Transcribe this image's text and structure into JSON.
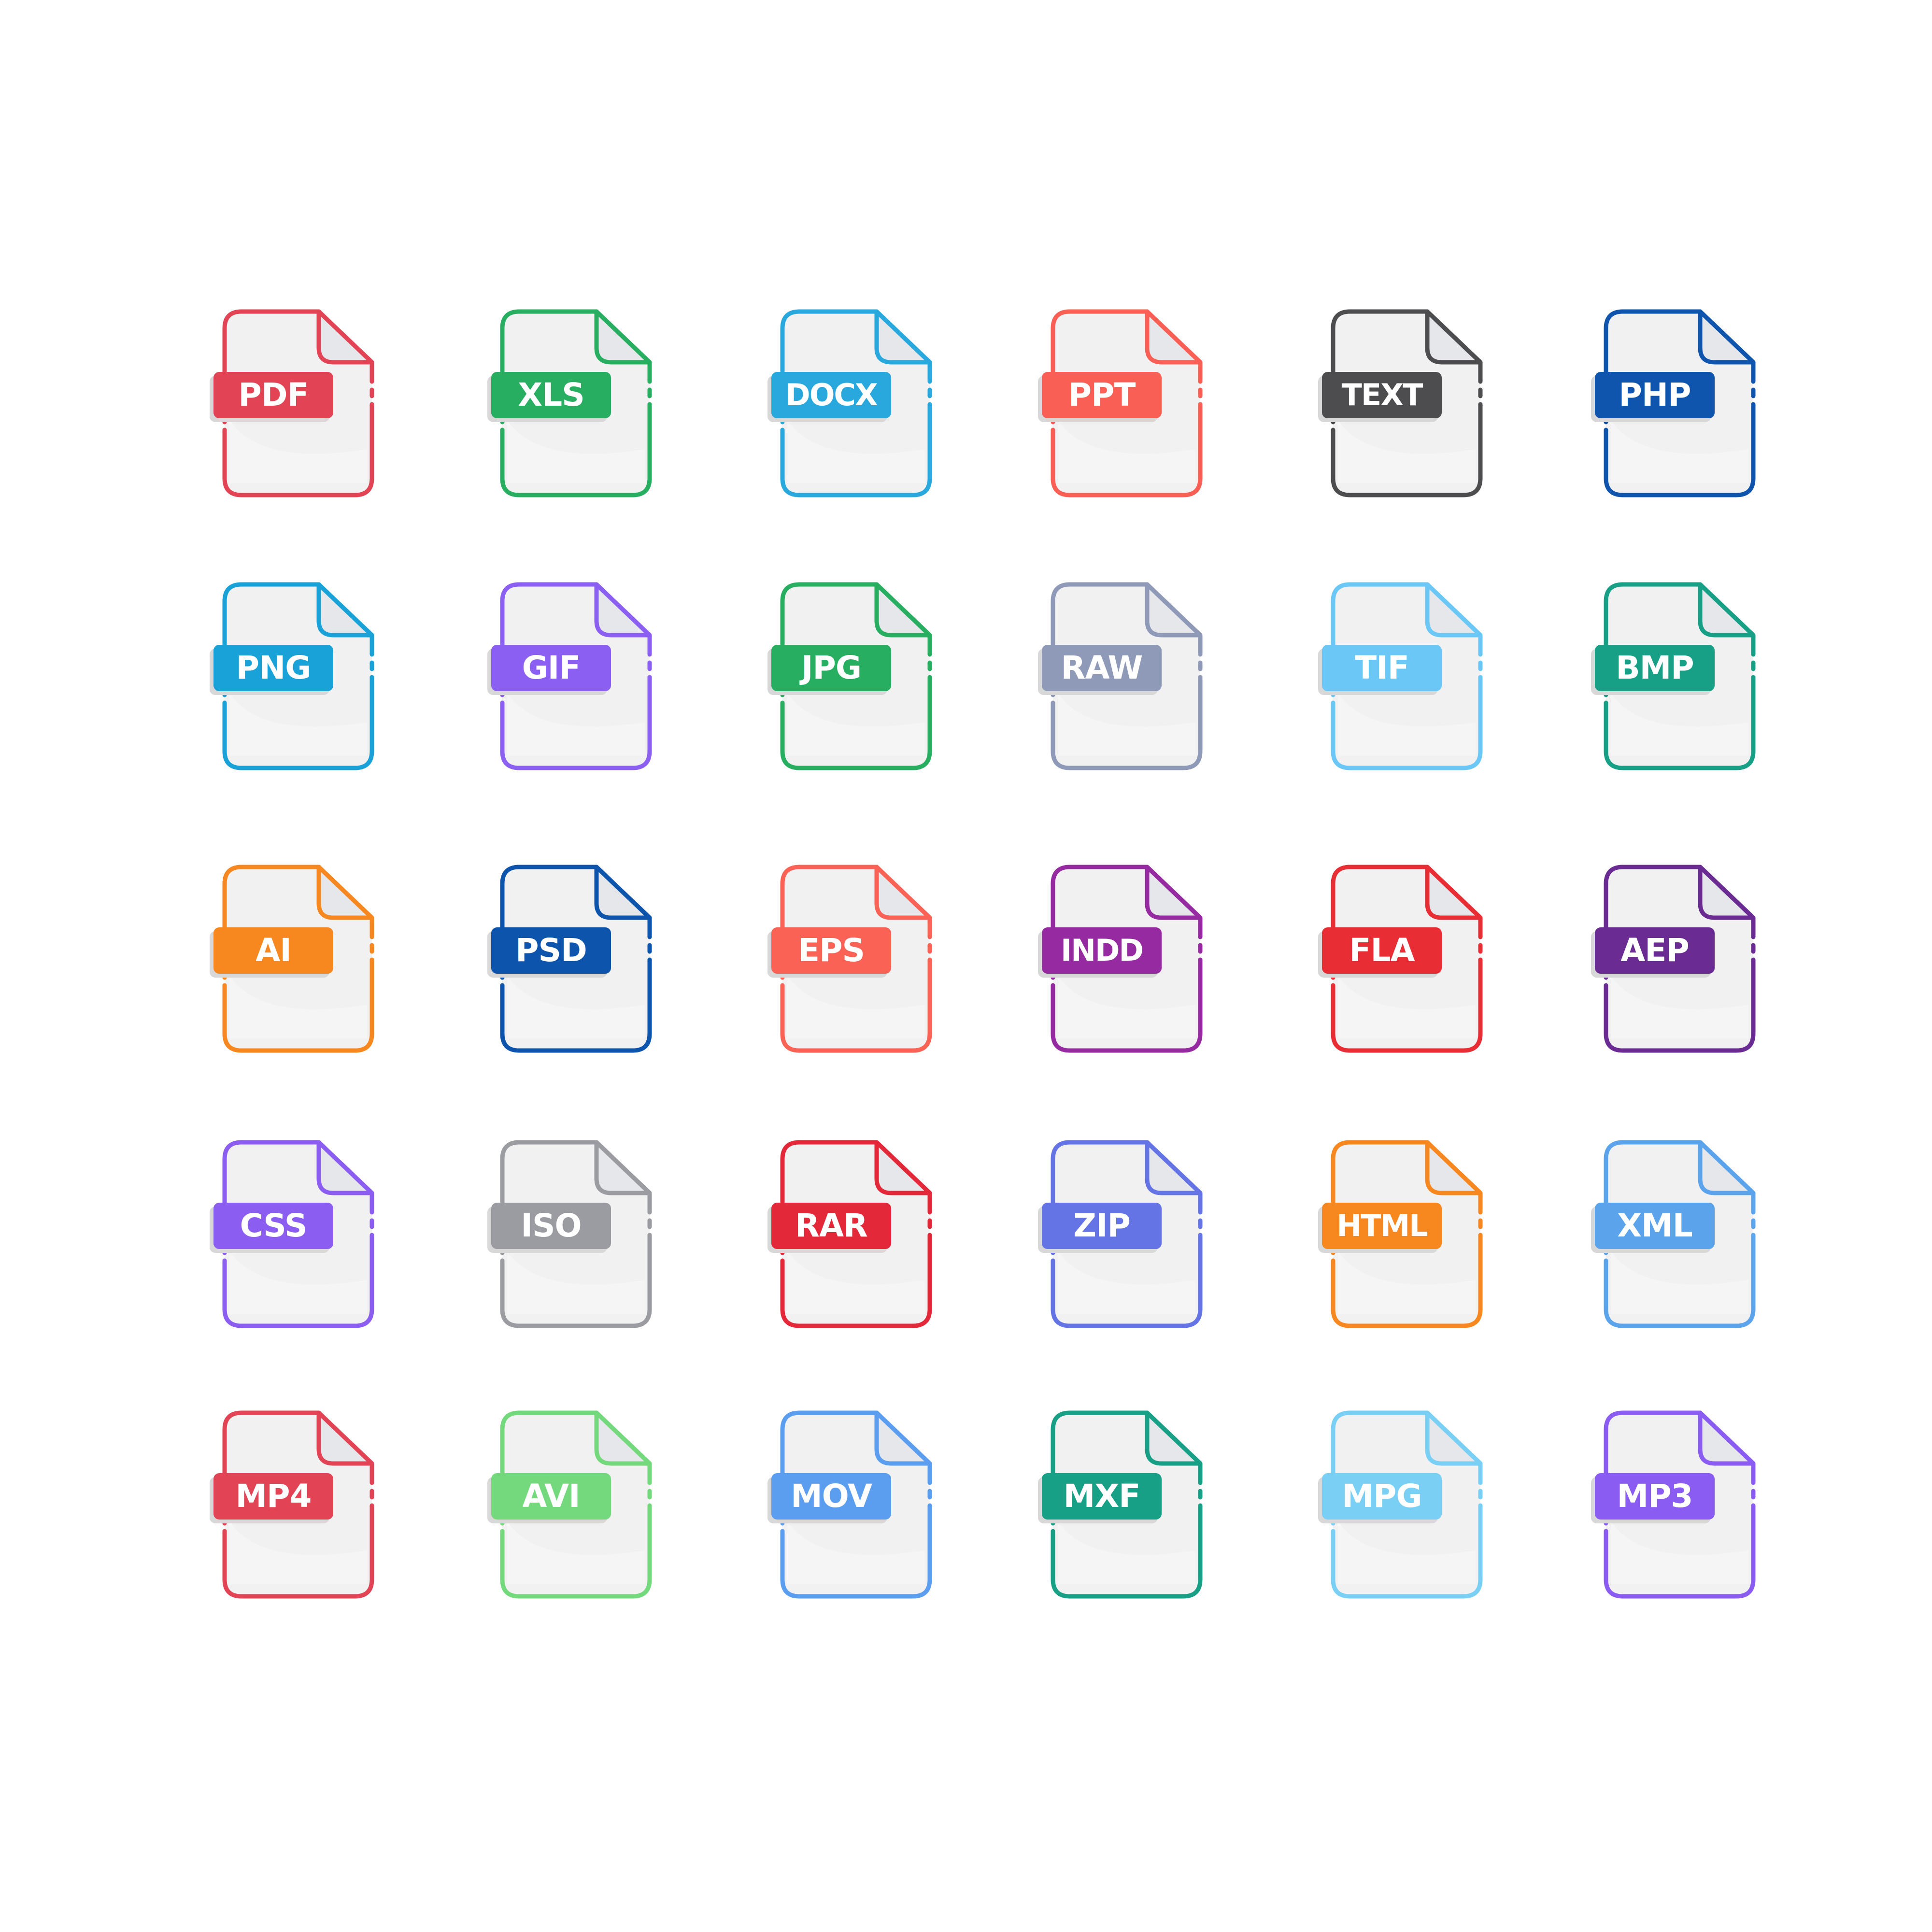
{
  "colors": {
    "page_background": "#ffffff",
    "page_fill": "#f1f1f1",
    "fold_fill": "#e6e7ea",
    "label_shadow": "#d8d8d8",
    "label_text": "#ffffff"
  },
  "icons": [
    {
      "label": "PDF",
      "color": "#e24456",
      "icon": "file-icon"
    },
    {
      "label": "XLS",
      "color": "#27ae60",
      "icon": "file-icon"
    },
    {
      "label": "DOCX",
      "color": "#29a8de",
      "icon": "file-icon"
    },
    {
      "label": "PPT",
      "color": "#fa5f55",
      "icon": "file-icon"
    },
    {
      "label": "TEXT",
      "color": "#4d4d4f",
      "icon": "file-icon"
    },
    {
      "label": "PHP",
      "color": "#0f55ad",
      "icon": "file-icon"
    },
    {
      "label": "PNG",
      "color": "#19a2d8",
      "icon": "file-icon"
    },
    {
      "label": "GIF",
      "color": "#8b5ff1",
      "icon": "file-icon"
    },
    {
      "label": "JPG",
      "color": "#27ae60",
      "icon": "file-icon"
    },
    {
      "label": "RAW",
      "color": "#8e9ab7",
      "icon": "file-icon"
    },
    {
      "label": "TIF",
      "color": "#6bc8f6",
      "icon": "file-icon"
    },
    {
      "label": "BMP",
      "color": "#17a086",
      "icon": "file-icon"
    },
    {
      "label": "AI",
      "color": "#f7871f",
      "icon": "file-icon"
    },
    {
      "label": "PSD",
      "color": "#0d54ad",
      "icon": "file-icon"
    },
    {
      "label": "EPS",
      "color": "#fa6256",
      "icon": "file-icon"
    },
    {
      "label": "INDD",
      "color": "#962aa1",
      "icon": "file-icon"
    },
    {
      "label": "FLA",
      "color": "#e82d35",
      "icon": "file-icon"
    },
    {
      "label": "AEP",
      "color": "#6a2c93",
      "icon": "file-icon"
    },
    {
      "label": "CSS",
      "color": "#8b5df1",
      "icon": "file-icon"
    },
    {
      "label": "ISO",
      "color": "#9b9ca2",
      "icon": "file-icon"
    },
    {
      "label": "RAR",
      "color": "#e3283a",
      "icon": "file-icon"
    },
    {
      "label": "ZIP",
      "color": "#6474e5",
      "icon": "file-icon"
    },
    {
      "label": "HTML",
      "color": "#f7871f",
      "icon": "file-icon"
    },
    {
      "label": "XML",
      "color": "#5ba4ec",
      "icon": "file-icon"
    },
    {
      "label": "MP4",
      "color": "#e24456",
      "icon": "file-icon"
    },
    {
      "label": "AVI",
      "color": "#74d97c",
      "icon": "file-icon"
    },
    {
      "label": "MOV",
      "color": "#5b9ef0",
      "icon": "file-icon"
    },
    {
      "label": "MXF",
      "color": "#17a086",
      "icon": "file-icon"
    },
    {
      "label": "MPG",
      "color": "#79cff4",
      "icon": "file-icon"
    },
    {
      "label": "MP3",
      "color": "#8b5cf1",
      "icon": "file-icon"
    }
  ]
}
